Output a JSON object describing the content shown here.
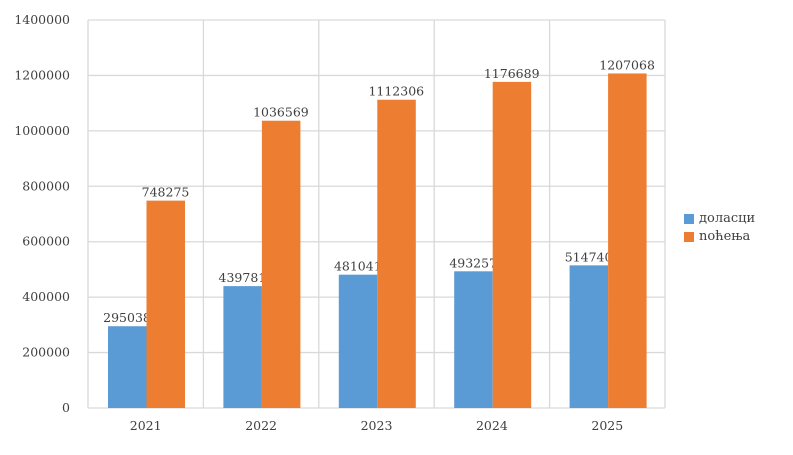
{
  "chart_data": {
    "type": "bar",
    "categories": [
      "2021",
      "2022",
      "2023",
      "2024",
      "2025"
    ],
    "series": [
      {
        "name": "доласци",
        "color": "#5b9bd5",
        "values": [
          295038,
          439781,
          481041,
          493257,
          514740
        ]
      },
      {
        "name": "noћења",
        "color": "#ed7d31",
        "values": [
          748275,
          1036569,
          1112306,
          1176689,
          1207068
        ]
      }
    ],
    "yticks": [
      "0",
      "200000",
      "400000",
      "600000",
      "800000",
      "1000000",
      "1200000",
      "1400000"
    ],
    "ylim": [
      0,
      1400000
    ],
    "grid": true,
    "legend": "right",
    "data_labels": true
  }
}
